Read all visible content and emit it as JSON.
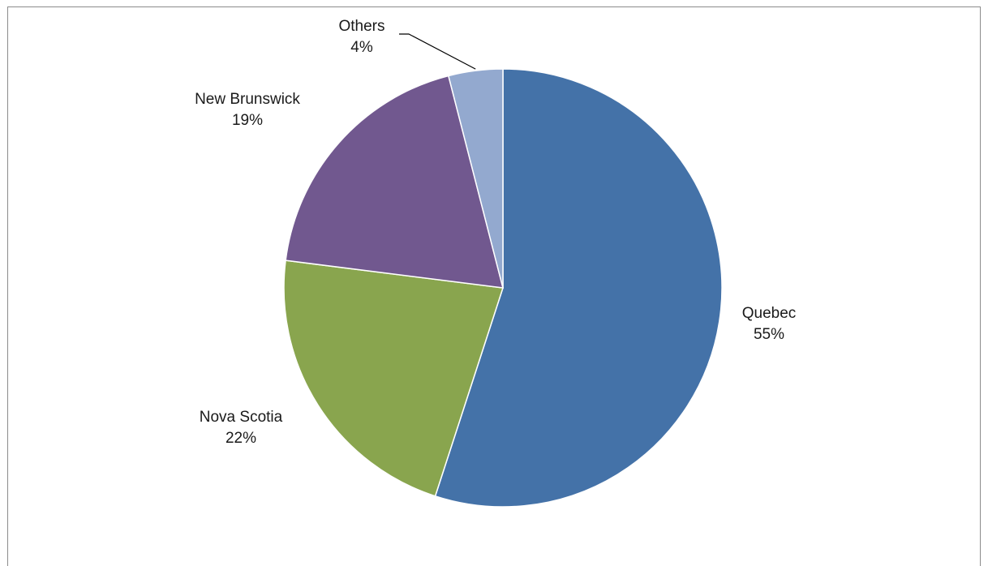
{
  "chart_data": {
    "type": "pie",
    "title": "",
    "start_angle_deg": 0,
    "direction": "clockwise",
    "slices": [
      {
        "label": "Quebec",
        "value": 55,
        "value_label": "55%",
        "color": "#4472a8"
      },
      {
        "label": "Nova Scotia",
        "value": 22,
        "value_label": "22%",
        "color": "#89a54e"
      },
      {
        "label": "New Brunswick",
        "value": 19,
        "value_label": "19%",
        "color": "#71588f"
      },
      {
        "label": "Others",
        "value": 4,
        "value_label": "4%",
        "color": "#93a9cf"
      }
    ],
    "legend": "none",
    "data_labels": "category-and-percent"
  }
}
